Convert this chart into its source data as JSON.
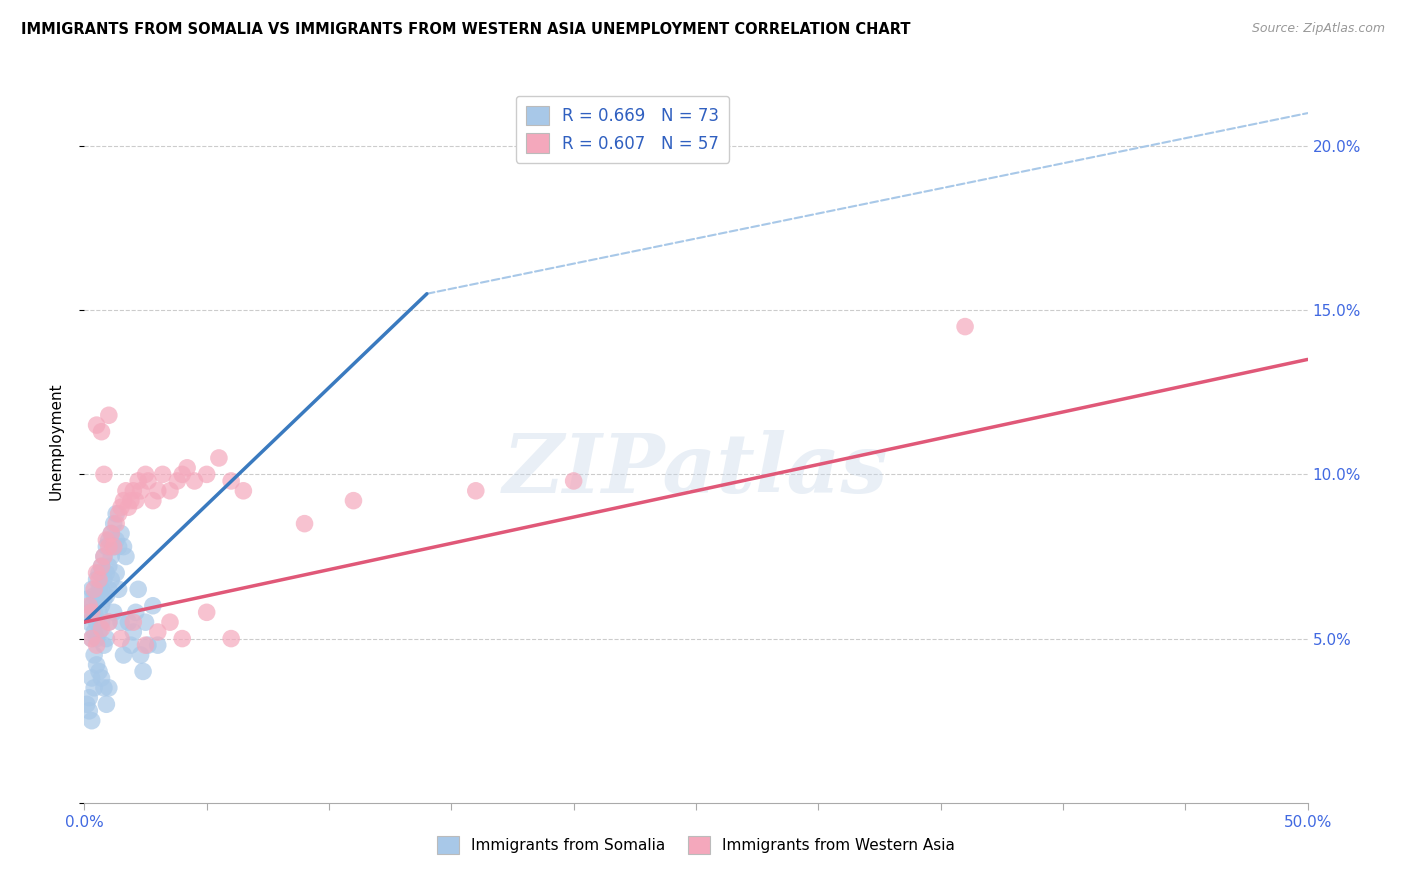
{
  "title": "IMMIGRANTS FROM SOMALIA VS IMMIGRANTS FROM WESTERN ASIA UNEMPLOYMENT CORRELATION CHART",
  "source": "Source: ZipAtlas.com",
  "ylabel": "Unemployment",
  "xlim": [
    0.0,
    0.5
  ],
  "ylim": [
    0.0,
    0.22
  ],
  "xticks": [
    0.0,
    0.05,
    0.1,
    0.15,
    0.2,
    0.25,
    0.3,
    0.35,
    0.4,
    0.45,
    0.5
  ],
  "yticks": [
    0.0,
    0.05,
    0.1,
    0.15,
    0.2
  ],
  "ytick_labels": [
    "",
    "5.0%",
    "10.0%",
    "15.0%",
    "20.0%"
  ],
  "xtick_labels": [
    "0.0%",
    "",
    "",
    "",
    "",
    "",
    "",
    "",
    "",
    "",
    "50.0%"
  ],
  "somalia_color": "#a8c8e8",
  "western_asia_color": "#f4a8bc",
  "somalia_line_color": "#3a7abf",
  "western_asia_line_color": "#e05878",
  "dashed_line_color": "#a8c8e8",
  "watermark_text": "ZIPatlas",
  "somalia_scatter": [
    [
      0.001,
      0.062
    ],
    [
      0.002,
      0.058
    ],
    [
      0.002,
      0.055
    ],
    [
      0.003,
      0.06
    ],
    [
      0.003,
      0.065
    ],
    [
      0.003,
      0.05
    ],
    [
      0.004,
      0.063
    ],
    [
      0.004,
      0.058
    ],
    [
      0.004,
      0.052
    ],
    [
      0.004,
      0.045
    ],
    [
      0.005,
      0.068
    ],
    [
      0.005,
      0.062
    ],
    [
      0.005,
      0.055
    ],
    [
      0.005,
      0.05
    ],
    [
      0.006,
      0.07
    ],
    [
      0.006,
      0.065
    ],
    [
      0.006,
      0.058
    ],
    [
      0.006,
      0.052
    ],
    [
      0.007,
      0.072
    ],
    [
      0.007,
      0.065
    ],
    [
      0.007,
      0.06
    ],
    [
      0.007,
      0.055
    ],
    [
      0.008,
      0.075
    ],
    [
      0.008,
      0.068
    ],
    [
      0.008,
      0.062
    ],
    [
      0.008,
      0.048
    ],
    [
      0.009,
      0.078
    ],
    [
      0.009,
      0.07
    ],
    [
      0.009,
      0.063
    ],
    [
      0.009,
      0.05
    ],
    [
      0.01,
      0.08
    ],
    [
      0.01,
      0.072
    ],
    [
      0.01,
      0.065
    ],
    [
      0.01,
      0.055
    ],
    [
      0.011,
      0.082
    ],
    [
      0.011,
      0.075
    ],
    [
      0.011,
      0.068
    ],
    [
      0.012,
      0.085
    ],
    [
      0.012,
      0.078
    ],
    [
      0.012,
      0.058
    ],
    [
      0.013,
      0.088
    ],
    [
      0.013,
      0.08
    ],
    [
      0.013,
      0.07
    ],
    [
      0.014,
      0.078
    ],
    [
      0.014,
      0.065
    ],
    [
      0.015,
      0.082
    ],
    [
      0.015,
      0.055
    ],
    [
      0.016,
      0.078
    ],
    [
      0.016,
      0.045
    ],
    [
      0.017,
      0.075
    ],
    [
      0.018,
      0.055
    ],
    [
      0.019,
      0.048
    ],
    [
      0.02,
      0.052
    ],
    [
      0.021,
      0.058
    ],
    [
      0.022,
      0.065
    ],
    [
      0.023,
      0.045
    ],
    [
      0.024,
      0.04
    ],
    [
      0.025,
      0.055
    ],
    [
      0.026,
      0.048
    ],
    [
      0.028,
      0.06
    ],
    [
      0.001,
      0.03
    ],
    [
      0.002,
      0.032
    ],
    [
      0.002,
      0.028
    ],
    [
      0.003,
      0.025
    ],
    [
      0.003,
      0.038
    ],
    [
      0.004,
      0.035
    ],
    [
      0.005,
      0.042
    ],
    [
      0.006,
      0.04
    ],
    [
      0.007,
      0.038
    ],
    [
      0.008,
      0.035
    ],
    [
      0.009,
      0.03
    ],
    [
      0.01,
      0.035
    ],
    [
      0.03,
      0.048
    ]
  ],
  "western_asia_scatter": [
    [
      0.002,
      0.06
    ],
    [
      0.003,
      0.058
    ],
    [
      0.004,
      0.065
    ],
    [
      0.005,
      0.07
    ],
    [
      0.005,
      0.115
    ],
    [
      0.006,
      0.068
    ],
    [
      0.007,
      0.072
    ],
    [
      0.007,
      0.113
    ],
    [
      0.008,
      0.075
    ],
    [
      0.008,
      0.1
    ],
    [
      0.009,
      0.08
    ],
    [
      0.01,
      0.078
    ],
    [
      0.01,
      0.118
    ],
    [
      0.011,
      0.082
    ],
    [
      0.012,
      0.078
    ],
    [
      0.013,
      0.085
    ],
    [
      0.014,
      0.088
    ],
    [
      0.015,
      0.09
    ],
    [
      0.016,
      0.092
    ],
    [
      0.017,
      0.095
    ],
    [
      0.018,
      0.09
    ],
    [
      0.019,
      0.092
    ],
    [
      0.02,
      0.095
    ],
    [
      0.021,
      0.092
    ],
    [
      0.022,
      0.098
    ],
    [
      0.023,
      0.095
    ],
    [
      0.025,
      0.1
    ],
    [
      0.026,
      0.098
    ],
    [
      0.028,
      0.092
    ],
    [
      0.03,
      0.095
    ],
    [
      0.032,
      0.1
    ],
    [
      0.035,
      0.095
    ],
    [
      0.038,
      0.098
    ],
    [
      0.04,
      0.1
    ],
    [
      0.042,
      0.102
    ],
    [
      0.045,
      0.098
    ],
    [
      0.05,
      0.1
    ],
    [
      0.055,
      0.105
    ],
    [
      0.06,
      0.098
    ],
    [
      0.065,
      0.095
    ],
    [
      0.003,
      0.05
    ],
    [
      0.005,
      0.048
    ],
    [
      0.007,
      0.053
    ],
    [
      0.01,
      0.055
    ],
    [
      0.015,
      0.05
    ],
    [
      0.02,
      0.055
    ],
    [
      0.025,
      0.048
    ],
    [
      0.03,
      0.052
    ],
    [
      0.035,
      0.055
    ],
    [
      0.04,
      0.05
    ],
    [
      0.05,
      0.058
    ],
    [
      0.06,
      0.05
    ],
    [
      0.09,
      0.085
    ],
    [
      0.11,
      0.092
    ],
    [
      0.16,
      0.095
    ],
    [
      0.2,
      0.098
    ],
    [
      0.36,
      0.145
    ]
  ],
  "somalia_trendline_solid": [
    [
      0.0,
      0.055
    ],
    [
      0.14,
      0.155
    ]
  ],
  "somalia_trendline_dashed": [
    [
      0.14,
      0.155
    ],
    [
      0.5,
      0.21
    ]
  ],
  "western_asia_trendline": [
    [
      0.0,
      0.055
    ],
    [
      0.5,
      0.135
    ]
  ]
}
